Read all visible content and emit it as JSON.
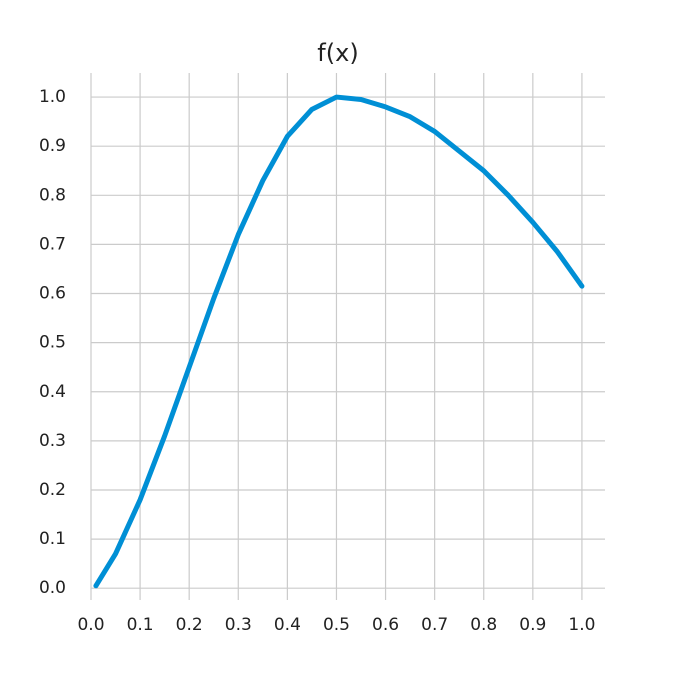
{
  "chart_data": {
    "type": "line",
    "title": "f(x)",
    "x": [
      0.01,
      0.05,
      0.1,
      0.15,
      0.2,
      0.25,
      0.3,
      0.35,
      0.4,
      0.45,
      0.5,
      0.55,
      0.6,
      0.65,
      0.7,
      0.75,
      0.8,
      0.85,
      0.9,
      0.95,
      1.0
    ],
    "values": [
      0.005,
      0.07,
      0.18,
      0.31,
      0.45,
      0.59,
      0.72,
      0.83,
      0.92,
      0.975,
      1.0,
      0.995,
      0.98,
      0.96,
      0.93,
      0.89,
      0.85,
      0.8,
      0.745,
      0.685,
      0.615
    ],
    "color": "#008fd5",
    "xlim": [
      0,
      1.047
    ],
    "ylim": [
      -0.024,
      1.049
    ],
    "xticks": [
      {
        "value": 0,
        "label": "0.0"
      },
      0.1,
      0.2,
      0.3,
      0.4,
      0.5,
      0.6,
      0.7,
      0.8,
      0.9,
      {
        "value": 1,
        "label": "1.0"
      }
    ],
    "yticks": [
      {
        "value": 0,
        "label": "0.0"
      },
      0.1,
      0.2,
      0.3,
      0.4,
      0.5,
      0.6,
      0.7,
      0.8,
      0.9,
      {
        "value": 1,
        "label": "1.0"
      }
    ],
    "grid": true
  }
}
